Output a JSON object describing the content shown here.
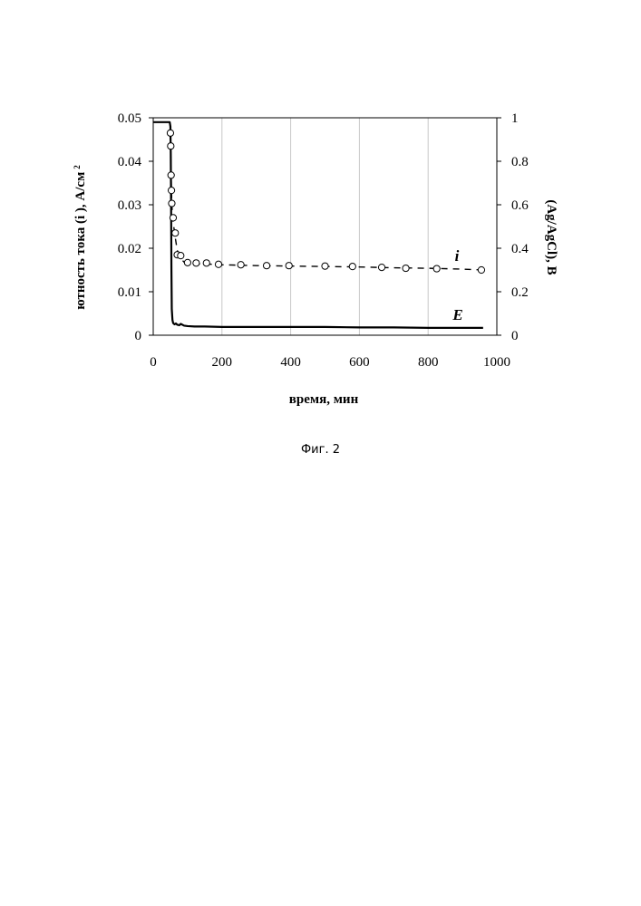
{
  "caption": "Фиг. 2",
  "chart_data": {
    "type": "line",
    "xlabel": "время, мин",
    "ylabel_left": "ютность тока (i ), А/см",
    "ylabel_left_sup": "2",
    "ylabel_right": "(Ag/AgCl), В",
    "xlim": [
      0,
      1000
    ],
    "ylim_left": [
      0,
      0.05
    ],
    "ylim_right": [
      0,
      1
    ],
    "x_ticks": [
      0,
      200,
      400,
      600,
      800,
      1000
    ],
    "y_left_ticks": [
      0,
      0.01,
      0.02,
      0.03,
      0.04,
      0.05
    ],
    "y_right_ticks": [
      0,
      0.2,
      0.4,
      0.6,
      0.8,
      1
    ],
    "x_tick_labels": [
      "0",
      "200",
      "400",
      "600",
      "800",
      "1000"
    ],
    "y_left_tick_labels": [
      "0",
      "0.01",
      "0.02",
      "0.03",
      "0.04",
      "0.05"
    ],
    "y_right_tick_labels": [
      "0",
      "0.2",
      "0.4",
      "0.6",
      "0.8",
      "1"
    ],
    "grid": "vertical",
    "series": [
      {
        "name": "E",
        "axis": "left",
        "style": "solid-line",
        "x": [
          0,
          48,
          50,
          51,
          52,
          53,
          54,
          56,
          58,
          62,
          66,
          70,
          76,
          80,
          90,
          100,
          120,
          150,
          200,
          300,
          400,
          500,
          600,
          700,
          800,
          900,
          960
        ],
        "y": [
          0.049,
          0.049,
          0.048,
          0.042,
          0.03,
          0.015,
          0.006,
          0.0035,
          0.0028,
          0.0025,
          0.0027,
          0.0024,
          0.0023,
          0.0026,
          0.0022,
          0.0021,
          0.002,
          0.002,
          0.0019,
          0.0019,
          0.0019,
          0.0019,
          0.0018,
          0.0018,
          0.0017,
          0.0017,
          0.0017
        ]
      },
      {
        "name": "i",
        "axis": "left",
        "style": "dashed-line-circle-markers",
        "x": [
          50,
          51,
          52,
          53,
          54,
          58,
          64,
          70,
          80,
          100,
          125,
          155,
          190,
          255,
          330,
          395,
          500,
          580,
          665,
          735,
          825,
          955
        ],
        "y": [
          0.0465,
          0.0435,
          0.0368,
          0.0333,
          0.0303,
          0.027,
          0.0235,
          0.0185,
          0.0183,
          0.0167,
          0.0166,
          0.0166,
          0.0163,
          0.0162,
          0.016,
          0.016,
          0.0159,
          0.0158,
          0.0156,
          0.0154,
          0.0153,
          0.015
        ],
        "line_x": [
          50,
          52,
          54,
          58,
          64,
          70,
          78,
          90,
          110,
          150,
          200,
          300,
          400,
          500,
          600,
          700,
          800,
          900,
          960
        ],
        "line_y": [
          0.0465,
          0.037,
          0.03,
          0.026,
          0.0225,
          0.0195,
          0.0178,
          0.0168,
          0.0165,
          0.0164,
          0.0162,
          0.016,
          0.0159,
          0.0158,
          0.0157,
          0.0155,
          0.0154,
          0.0152,
          0.015
        ]
      }
    ]
  }
}
